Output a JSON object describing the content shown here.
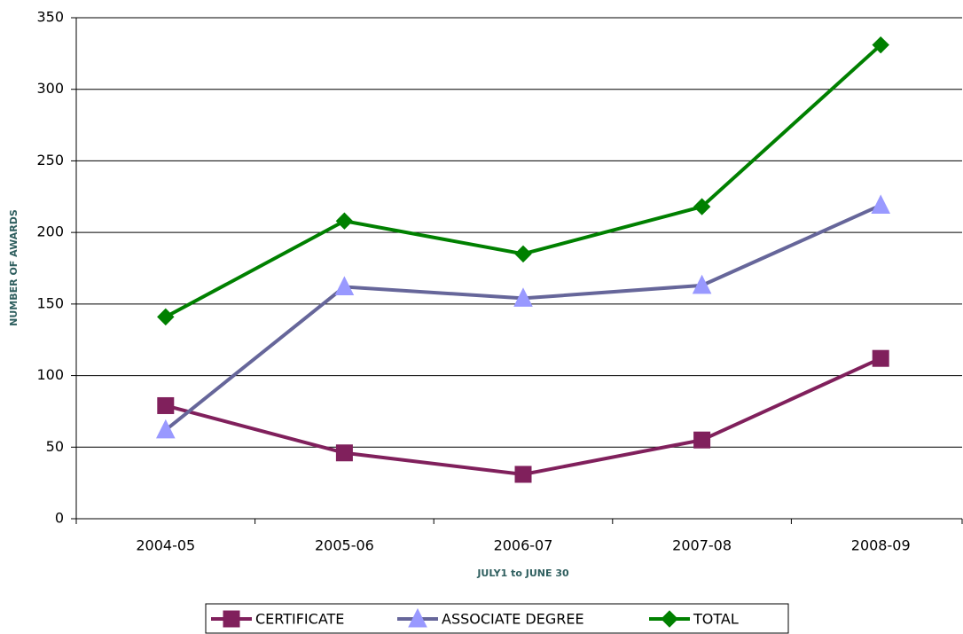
{
  "chart_data": {
    "type": "line",
    "x_label": "JULY1 to JUNE 30",
    "y_label": "NUMBER OF AWARDS",
    "categories": [
      "2004-05",
      "2005-06",
      "2006-07",
      "2007-08",
      "2008-09"
    ],
    "series": [
      {
        "name": "CERTIFICATE",
        "color": "#80205c",
        "marker_color": "#80205c",
        "marker": "square",
        "values": [
          79,
          46,
          31,
          55,
          112
        ]
      },
      {
        "name": "ASSOCIATE DEGREE",
        "color": "#66669a",
        "marker_color": "#9999ff",
        "marker": "triangle",
        "values": [
          62,
          162,
          154,
          163,
          219
        ]
      },
      {
        "name": "TOTAL",
        "color": "#008000",
        "marker_color": "#008000",
        "marker": "diamond",
        "values": [
          141,
          208,
          185,
          218,
          331
        ]
      }
    ],
    "ylim": [
      0,
      350
    ],
    "yticks": [
      0,
      50,
      100,
      150,
      200,
      250,
      300,
      350
    ],
    "grid": true,
    "legend": "bottom"
  }
}
